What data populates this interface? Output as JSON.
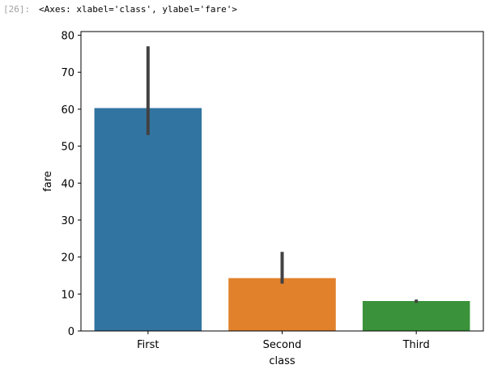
{
  "cell": {
    "prompt": "[26]:",
    "output_text": "<Axes: xlabel='class', ylabel='fare'>"
  },
  "chart_data": {
    "type": "bar",
    "categories": [
      "First",
      "Second",
      "Third"
    ],
    "values": [
      60.3,
      14.3,
      8.1
    ],
    "error_bars": [
      {
        "low": 53.0,
        "high": 77.0
      },
      {
        "low": 12.8,
        "high": 21.4
      },
      {
        "low": 7.6,
        "high": 8.5
      }
    ],
    "colors": [
      "#3274a1",
      "#e1812c",
      "#3a923a"
    ],
    "error_color": "#424242",
    "title": "",
    "xlabel": "class",
    "ylabel": "fare",
    "ylim": [
      0,
      81
    ],
    "yticks": [
      0,
      10,
      20,
      30,
      40,
      50,
      60,
      70,
      80
    ],
    "grid": false
  }
}
